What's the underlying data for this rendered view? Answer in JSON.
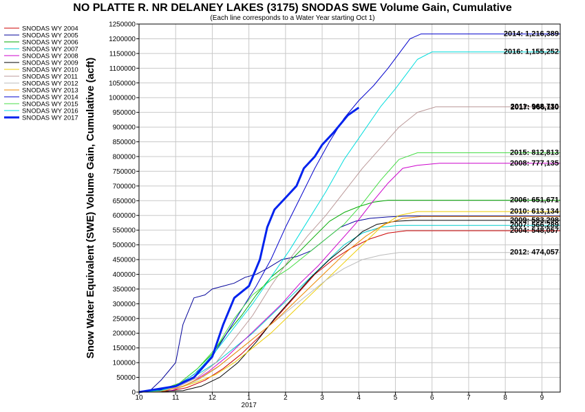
{
  "chart_data": {
    "type": "line",
    "title": "NO PLATTE R. NR DELANEY LAKES (3175) SNODAS SWE Volume Gain, Cumulative",
    "subtitle": "(Each line corresponds to a Water Year starting Oct 1)",
    "ylabel": "Snow Water Equivalent (SWE) Volume Gain, Cumulative (acft)",
    "xlabel": "",
    "ylim": [
      0,
      1250000
    ],
    "y_ticks": [
      0,
      50000,
      100000,
      150000,
      200000,
      250000,
      300000,
      350000,
      400000,
      450000,
      500000,
      550000,
      600000,
      650000,
      700000,
      750000,
      800000,
      850000,
      900000,
      950000,
      1000000,
      1050000,
      1100000,
      1150000,
      1200000,
      1250000
    ],
    "xlim": [
      10,
      21.5
    ],
    "x_ticks": [
      {
        "x": 10,
        "label": "10"
      },
      {
        "x": 11,
        "label": "11"
      },
      {
        "x": 12,
        "label": "12"
      },
      {
        "x": 13,
        "label": "1"
      },
      {
        "x": 14,
        "label": "2"
      },
      {
        "x": 15,
        "label": "3"
      },
      {
        "x": 16,
        "label": "4"
      },
      {
        "x": 17,
        "label": "5"
      },
      {
        "x": 18,
        "label": "6"
      },
      {
        "x": 19,
        "label": "7"
      },
      {
        "x": 20,
        "label": "8"
      },
      {
        "x": 21,
        "label": "9"
      }
    ],
    "x_sublabel": {
      "x": 13,
      "label": "2017"
    },
    "grid": true,
    "legend_position": "left",
    "series": [
      {
        "name": "SNODAS WY 2004",
        "color": "#cc0000",
        "width": 1,
        "end_label": "2004: 548,057",
        "points": [
          [
            10,
            0
          ],
          [
            10.8,
            3000
          ],
          [
            11.3,
            15000
          ],
          [
            11.8,
            40000
          ],
          [
            12.3,
            80000
          ],
          [
            12.8,
            130000
          ],
          [
            13.3,
            190000
          ],
          [
            13.8,
            260000
          ],
          [
            14.3,
            330000
          ],
          [
            14.8,
            400000
          ],
          [
            15.3,
            450000
          ],
          [
            15.8,
            490000
          ],
          [
            16.3,
            520000
          ],
          [
            16.8,
            540000
          ],
          [
            17.3,
            548057
          ],
          [
            21.5,
            548057
          ]
        ]
      },
      {
        "name": "SNODAS WY 2005",
        "color": "#000099",
        "width": 1,
        "end_label": "",
        "points": [
          [
            10,
            0
          ],
          [
            10.3,
            5000
          ],
          [
            10.6,
            40000
          ],
          [
            10.8,
            70000
          ],
          [
            11,
            100000
          ],
          [
            11.2,
            230000
          ],
          [
            11.5,
            320000
          ],
          [
            11.8,
            330000
          ],
          [
            12,
            350000
          ],
          [
            12.3,
            360000
          ],
          [
            12.6,
            370000
          ],
          [
            12.9,
            390000
          ],
          [
            13.2,
            400000
          ],
          [
            13.5,
            420000
          ],
          [
            13.9,
            450000
          ],
          [
            14.3,
            460000
          ],
          [
            14.7,
            480000
          ],
          [
            15.1,
            520000
          ],
          [
            15.5,
            560000
          ],
          [
            15.9,
            580000
          ],
          [
            16.3,
            590000
          ],
          [
            16.8,
            595000
          ],
          [
            17.3,
            598000
          ],
          [
            21.5,
            598000
          ]
        ]
      },
      {
        "name": "SNODAS WY 2006",
        "color": "#00aa00",
        "width": 1,
        "end_label": "2006: 651,671",
        "points": [
          [
            10,
            0
          ],
          [
            10.6,
            8000
          ],
          [
            11.1,
            30000
          ],
          [
            11.6,
            80000
          ],
          [
            12,
            130000
          ],
          [
            12.4,
            200000
          ],
          [
            12.8,
            260000
          ],
          [
            13.2,
            330000
          ],
          [
            13.6,
            390000
          ],
          [
            14,
            430000
          ],
          [
            14.4,
            480000
          ],
          [
            14.8,
            530000
          ],
          [
            15.2,
            580000
          ],
          [
            15.6,
            610000
          ],
          [
            16,
            630000
          ],
          [
            16.4,
            645000
          ],
          [
            16.8,
            651671
          ],
          [
            21.5,
            651671
          ]
        ]
      },
      {
        "name": "SNODAS WY 2007",
        "color": "#00cccc",
        "width": 1,
        "end_label": "2007: 566,289",
        "points": [
          [
            10,
            0
          ],
          [
            10.6,
            5000
          ],
          [
            11.1,
            25000
          ],
          [
            11.6,
            60000
          ],
          [
            12.1,
            100000
          ],
          [
            12.6,
            150000
          ],
          [
            13.1,
            200000
          ],
          [
            13.6,
            260000
          ],
          [
            14.1,
            320000
          ],
          [
            14.6,
            380000
          ],
          [
            15.1,
            440000
          ],
          [
            15.6,
            500000
          ],
          [
            16.1,
            540000
          ],
          [
            16.6,
            560000
          ],
          [
            17.1,
            566289
          ],
          [
            21.5,
            566289
          ]
        ]
      },
      {
        "name": "SNODAS WY 2008",
        "color": "#cc00cc",
        "width": 1,
        "end_label": "2008: 777,135",
        "points": [
          [
            10,
            0
          ],
          [
            10.9,
            5000
          ],
          [
            11.4,
            30000
          ],
          [
            11.9,
            70000
          ],
          [
            12.4,
            120000
          ],
          [
            12.9,
            180000
          ],
          [
            13.4,
            240000
          ],
          [
            13.9,
            300000
          ],
          [
            14.4,
            370000
          ],
          [
            14.9,
            430000
          ],
          [
            15.4,
            500000
          ],
          [
            15.9,
            570000
          ],
          [
            16.4,
            650000
          ],
          [
            16.8,
            710000
          ],
          [
            17.2,
            760000
          ],
          [
            17.6,
            770000
          ],
          [
            18.2,
            777135
          ],
          [
            21.5,
            777135
          ]
        ]
      },
      {
        "name": "SNODAS WY 2009",
        "color": "#000000",
        "width": 1,
        "end_label": "2009: 583,298",
        "points": [
          [
            10,
            0
          ],
          [
            11.2,
            5000
          ],
          [
            11.7,
            20000
          ],
          [
            12.2,
            50000
          ],
          [
            12.7,
            100000
          ],
          [
            13.2,
            170000
          ],
          [
            13.7,
            250000
          ],
          [
            14.2,
            320000
          ],
          [
            14.7,
            390000
          ],
          [
            15.2,
            450000
          ],
          [
            15.7,
            500000
          ],
          [
            16.1,
            545000
          ],
          [
            16.5,
            570000
          ],
          [
            17,
            580000
          ],
          [
            17.5,
            583298
          ],
          [
            21.5,
            583298
          ]
        ]
      },
      {
        "name": "SNODAS WY 2010",
        "color": "#eecc00",
        "width": 1,
        "end_label": "2010: 613,134",
        "points": [
          [
            10,
            0
          ],
          [
            10.6,
            3000
          ],
          [
            11.1,
            15000
          ],
          [
            11.6,
            35000
          ],
          [
            12.1,
            60000
          ],
          [
            12.6,
            100000
          ],
          [
            13.1,
            150000
          ],
          [
            13.6,
            200000
          ],
          [
            14.1,
            260000
          ],
          [
            14.6,
            320000
          ],
          [
            15.1,
            380000
          ],
          [
            15.6,
            440000
          ],
          [
            16.1,
            500000
          ],
          [
            16.6,
            560000
          ],
          [
            17.1,
            600000
          ],
          [
            17.6,
            613134
          ],
          [
            21.5,
            613134
          ]
        ]
      },
      {
        "name": "SNODAS WY 2011",
        "color": "#bb9999",
        "width": 1,
        "end_label": "2011: 968,730",
        "points": [
          [
            10,
            0
          ],
          [
            10.6,
            4000
          ],
          [
            11.1,
            20000
          ],
          [
            11.6,
            50000
          ],
          [
            12.1,
            100000
          ],
          [
            12.6,
            180000
          ],
          [
            13.1,
            260000
          ],
          [
            13.6,
            360000
          ],
          [
            14.1,
            450000
          ],
          [
            14.6,
            530000
          ],
          [
            15.1,
            600000
          ],
          [
            15.6,
            680000
          ],
          [
            16.1,
            760000
          ],
          [
            16.6,
            830000
          ],
          [
            17.1,
            900000
          ],
          [
            17.6,
            950000
          ],
          [
            18.1,
            968730
          ],
          [
            21.5,
            968730
          ]
        ]
      },
      {
        "name": "SNODAS WY 2012",
        "color": "#bbbbbb",
        "width": 1,
        "end_label": "2012: 474,057",
        "points": [
          [
            10,
            0
          ],
          [
            10.6,
            3000
          ],
          [
            11.1,
            15000
          ],
          [
            11.6,
            40000
          ],
          [
            12.1,
            80000
          ],
          [
            12.6,
            130000
          ],
          [
            13.1,
            180000
          ],
          [
            13.6,
            230000
          ],
          [
            14.1,
            280000
          ],
          [
            14.6,
            330000
          ],
          [
            15.1,
            380000
          ],
          [
            15.6,
            420000
          ],
          [
            16.1,
            450000
          ],
          [
            16.6,
            465000
          ],
          [
            17.1,
            474057
          ],
          [
            21.5,
            474057
          ]
        ]
      },
      {
        "name": "SNODAS WY 2013",
        "color": "#ee8800",
        "width": 1,
        "end_label": "",
        "points": [
          [
            10,
            0
          ],
          [
            10.7,
            4000
          ],
          [
            11.2,
            20000
          ],
          [
            11.7,
            50000
          ],
          [
            12.2,
            90000
          ],
          [
            12.7,
            140000
          ],
          [
            13.2,
            190000
          ],
          [
            13.7,
            240000
          ],
          [
            14.2,
            300000
          ],
          [
            14.7,
            360000
          ],
          [
            15.2,
            420000
          ],
          [
            15.7,
            480000
          ],
          [
            16.2,
            530000
          ],
          [
            16.7,
            570000
          ],
          [
            17.2,
            590000
          ],
          [
            17.7,
            596000
          ],
          [
            21.5,
            596000
          ]
        ]
      },
      {
        "name": "SNODAS WY 2014",
        "color": "#0000cc",
        "width": 1,
        "end_label": "2014: 1,216,389",
        "points": [
          [
            10,
            0
          ],
          [
            10.5,
            5000
          ],
          [
            11,
            20000
          ],
          [
            11.5,
            60000
          ],
          [
            12,
            120000
          ],
          [
            12.4,
            200000
          ],
          [
            12.8,
            280000
          ],
          [
            13.2,
            360000
          ],
          [
            13.6,
            450000
          ],
          [
            14,
            560000
          ],
          [
            14.4,
            660000
          ],
          [
            14.8,
            760000
          ],
          [
            15.2,
            850000
          ],
          [
            15.6,
            930000
          ],
          [
            16,
            990000
          ],
          [
            16.4,
            1040000
          ],
          [
            16.8,
            1100000
          ],
          [
            17.1,
            1150000
          ],
          [
            17.4,
            1200000
          ],
          [
            17.7,
            1216389
          ],
          [
            21.5,
            1216389
          ]
        ]
      },
      {
        "name": "SNODAS WY 2015",
        "color": "#44dd44",
        "width": 1,
        "end_label": "2015: 812,813",
        "points": [
          [
            10,
            0
          ],
          [
            10.6,
            5000
          ],
          [
            11.1,
            30000
          ],
          [
            11.6,
            80000
          ],
          [
            12.1,
            150000
          ],
          [
            12.6,
            250000
          ],
          [
            13.1,
            330000
          ],
          [
            13.6,
            380000
          ],
          [
            14.1,
            420000
          ],
          [
            14.6,
            470000
          ],
          [
            15.1,
            520000
          ],
          [
            15.6,
            570000
          ],
          [
            16.1,
            640000
          ],
          [
            16.6,
            720000
          ],
          [
            17.1,
            790000
          ],
          [
            17.6,
            812813
          ],
          [
            21.5,
            812813
          ]
        ]
      },
      {
        "name": "SNODAS WY 2016",
        "color": "#00dddd",
        "width": 1,
        "end_label": "2016: 1,155,252",
        "points": [
          [
            10,
            0
          ],
          [
            10.6,
            5000
          ],
          [
            11.1,
            25000
          ],
          [
            11.6,
            70000
          ],
          [
            12.1,
            140000
          ],
          [
            12.6,
            220000
          ],
          [
            13.1,
            300000
          ],
          [
            13.6,
            390000
          ],
          [
            14.1,
            480000
          ],
          [
            14.6,
            580000
          ],
          [
            15.1,
            680000
          ],
          [
            15.6,
            790000
          ],
          [
            16.1,
            880000
          ],
          [
            16.6,
            970000
          ],
          [
            17,
            1030000
          ],
          [
            17.3,
            1080000
          ],
          [
            17.6,
            1130000
          ],
          [
            18,
            1155252
          ],
          [
            21.5,
            1155252
          ]
        ]
      },
      {
        "name": "SNODAS WY 2017",
        "color": "#0022ee",
        "width": 3,
        "end_label": "2017: 966,110",
        "points": [
          [
            10,
            0
          ],
          [
            10.5,
            10000
          ],
          [
            11,
            20000
          ],
          [
            11.5,
            50000
          ],
          [
            12,
            120000
          ],
          [
            12.3,
            230000
          ],
          [
            12.6,
            320000
          ],
          [
            13,
            360000
          ],
          [
            13.3,
            450000
          ],
          [
            13.5,
            560000
          ],
          [
            13.7,
            620000
          ],
          [
            14,
            660000
          ],
          [
            14.3,
            700000
          ],
          [
            14.5,
            760000
          ],
          [
            14.8,
            800000
          ],
          [
            15,
            840000
          ],
          [
            15.3,
            880000
          ],
          [
            15.5,
            910000
          ],
          [
            15.7,
            940000
          ],
          [
            16,
            966110
          ]
        ]
      }
    ]
  }
}
